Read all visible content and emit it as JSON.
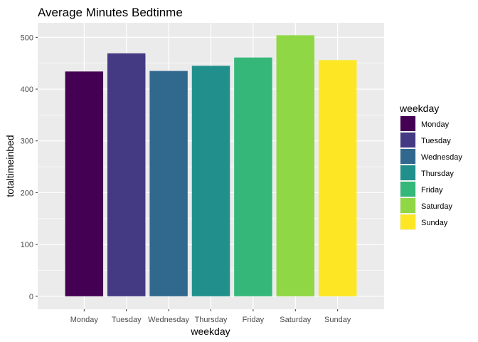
{
  "chart_data": {
    "type": "bar",
    "title": "Average Minutes Bedtinme",
    "xlabel": "weekday",
    "ylabel": "totaltimeinbed",
    "categories": [
      "Monday",
      "Tuesday",
      "Wednesday",
      "Thursday",
      "Friday",
      "Saturday",
      "Sunday"
    ],
    "values": [
      434,
      469,
      435,
      445,
      461,
      504,
      456
    ],
    "colors": [
      "#440154",
      "#443A83",
      "#31688E",
      "#21908C",
      "#35B779",
      "#8FD744",
      "#FDE725"
    ],
    "yticks": [
      0,
      100,
      200,
      300,
      400,
      500
    ],
    "ylim": [
      -25,
      528
    ],
    "grid": true,
    "panel_background": "#EBEBEB",
    "legend": {
      "title": "weekday",
      "position": "right",
      "items": [
        "Monday",
        "Tuesday",
        "Wednesday",
        "Thursday",
        "Friday",
        "Saturday",
        "Sunday"
      ]
    }
  }
}
